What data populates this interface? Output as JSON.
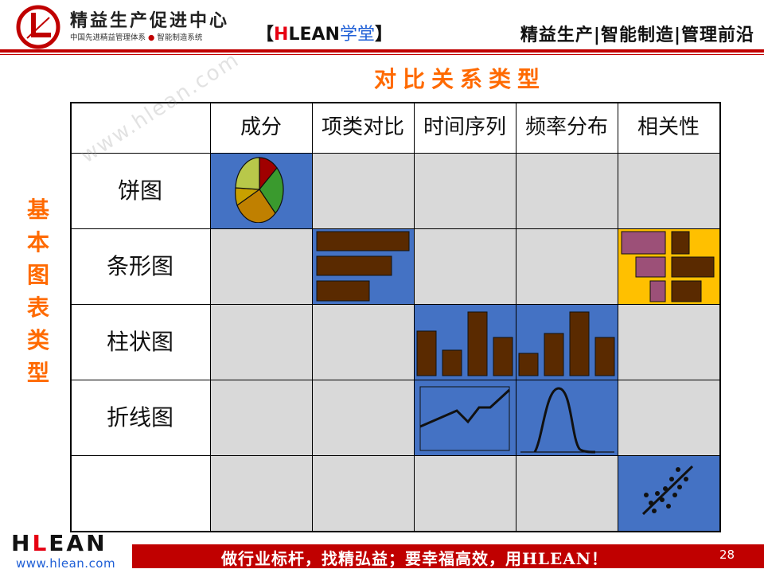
{
  "header": {
    "brand_title": "精益生产促进中心",
    "brand_sub_left": "中国先进精益管理体系",
    "brand_sub_dot": "●",
    "brand_sub_right": "智能制造系统",
    "tag_open": "【",
    "tag_h": "H",
    "tag_lean": "LEAN",
    "tag_xt": "学堂",
    "tag_close": "】",
    "right_text": "精益生产|智能制造|管理前沿",
    "accent": "#c00000"
  },
  "slide": {
    "title": "对比关系类型",
    "side_label": [
      "基",
      "本",
      "图",
      "表",
      "类",
      "型"
    ],
    "title_color": "#ff6a00"
  },
  "watermark": "www.hlean.com",
  "table": {
    "columns": [
      "成分",
      "项类对比",
      "时间序列",
      "频率分布",
      "相关性"
    ],
    "rows": [
      "饼图",
      "条形图",
      "柱状图",
      "折线图",
      ""
    ],
    "cell_colors": {
      "grey": "#d9d9d9",
      "blue": "#4472c4",
      "yellow": "#ffc000"
    }
  },
  "footer": {
    "logo_h": "H",
    "logo_l": "L",
    "logo_e": "E",
    "logo_a": "A",
    "logo_n": "N",
    "url": "www.hlean.com",
    "slogan": "做行业标杆，找精弘益；要幸福高效，用HLEAN！",
    "page_number": "28"
  },
  "icons": [
    "logo-icon",
    "pie-chart-icon",
    "bar-chart-icon",
    "mosaic-chart-icon",
    "column-chart-icon",
    "histogram-icon",
    "line-chart-icon",
    "bell-curve-icon",
    "scatter-plot-icon"
  ]
}
